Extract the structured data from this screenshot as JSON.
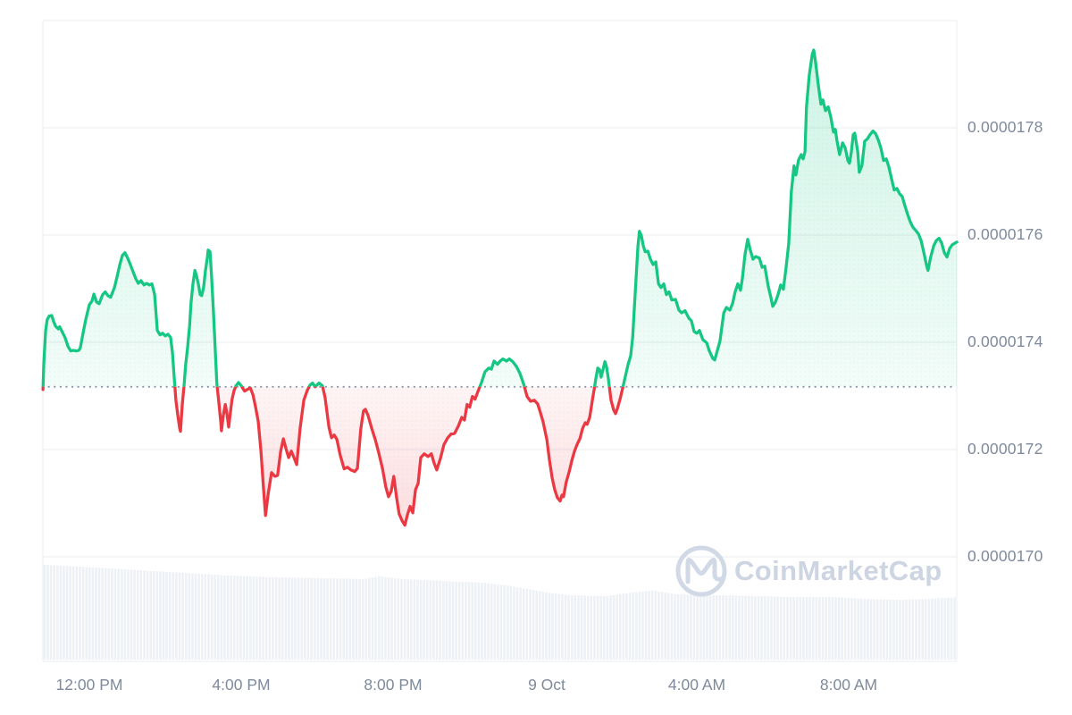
{
  "watermark": {
    "brand": "CoinMarketCap"
  },
  "colors": {
    "up": "#16c784",
    "down": "#ea3943",
    "grid": "#edf0f3",
    "axis_label": "#7e8a9c",
    "baseline_dots": "#8c96a6",
    "volume": "#edf0f5",
    "watermark_text": "#cdd4e2",
    "watermark_ring": "#d2d9e6",
    "background": "#ffffff"
  },
  "chart_data": {
    "type": "area",
    "subtype": "baseline-split-area (green above previous close, red below)",
    "title": "",
    "xlabel": "",
    "ylabel": "",
    "grid": "horizontal-only",
    "legend": "none",
    "price_unit_note": "price values are in millionths USD: 17.317 = 0.000017317",
    "t_unit_note": "t = hours elapsed since 11:00 AM on 8 Oct",
    "xlim": [
      -0.22,
      23.85
    ],
    "ylim": [
      16.81,
      18.0
    ],
    "baseline": {
      "value": 17.317,
      "display": "dotted",
      "meaning": "previous close 0.0000173"
    },
    "y_axis": {
      "side": "right",
      "ticks": [
        {
          "v": 17.8,
          "label": "0.0000178"
        },
        {
          "v": 17.6,
          "label": "0.0000176"
        },
        {
          "v": 17.4,
          "label": "0.0000174"
        },
        {
          "v": 17.2,
          "label": "0.0000172"
        },
        {
          "v": 17.0,
          "label": "0.0000170"
        }
      ]
    },
    "x_axis": {
      "ticks": [
        {
          "t": 1,
          "label": "12:00 PM"
        },
        {
          "t": 5,
          "label": "4:00 PM"
        },
        {
          "t": 9,
          "label": "8:00 PM"
        },
        {
          "t": 13,
          "label": "9 Oct"
        },
        {
          "t": 17,
          "label": "4:00 AM"
        },
        {
          "t": 21,
          "label": "8:00 AM"
        }
      ]
    },
    "series_format": [
      "t_hours",
      "price_millionths_usd"
    ],
    "series": [
      [
        -0.22,
        17.312
      ],
      [
        -0.2,
        17.359
      ],
      [
        -0.15,
        17.422
      ],
      [
        -0.11,
        17.442
      ],
      [
        -0.06,
        17.449
      ],
      [
        0.01,
        17.45
      ],
      [
        0.06,
        17.439
      ],
      [
        0.11,
        17.43
      ],
      [
        0.18,
        17.425
      ],
      [
        0.22,
        17.429
      ],
      [
        0.29,
        17.419
      ],
      [
        0.36,
        17.409
      ],
      [
        0.44,
        17.392
      ],
      [
        0.51,
        17.384
      ],
      [
        0.58,
        17.385
      ],
      [
        0.65,
        17.384
      ],
      [
        0.72,
        17.385
      ],
      [
        0.76,
        17.389
      ],
      [
        0.84,
        17.419
      ],
      [
        0.91,
        17.444
      ],
      [
        1.0,
        17.47
      ],
      [
        1.07,
        17.477
      ],
      [
        1.12,
        17.49
      ],
      [
        1.19,
        17.475
      ],
      [
        1.26,
        17.472
      ],
      [
        1.35,
        17.489
      ],
      [
        1.42,
        17.494
      ],
      [
        1.49,
        17.487
      ],
      [
        1.56,
        17.484
      ],
      [
        1.66,
        17.502
      ],
      [
        1.73,
        17.522
      ],
      [
        1.8,
        17.544
      ],
      [
        1.87,
        17.562
      ],
      [
        1.94,
        17.567
      ],
      [
        2.01,
        17.557
      ],
      [
        2.08,
        17.545
      ],
      [
        2.15,
        17.532
      ],
      [
        2.22,
        17.519
      ],
      [
        2.29,
        17.51
      ],
      [
        2.36,
        17.515
      ],
      [
        2.44,
        17.507
      ],
      [
        2.51,
        17.51
      ],
      [
        2.58,
        17.507
      ],
      [
        2.65,
        17.509
      ],
      [
        2.72,
        17.489
      ],
      [
        2.79,
        17.422
      ],
      [
        2.86,
        17.414
      ],
      [
        2.93,
        17.417
      ],
      [
        3.0,
        17.412
      ],
      [
        3.07,
        17.415
      ],
      [
        3.14,
        17.409
      ],
      [
        3.19,
        17.38
      ],
      [
        3.24,
        17.33
      ],
      [
        3.28,
        17.292
      ],
      [
        3.33,
        17.264
      ],
      [
        3.38,
        17.239
      ],
      [
        3.4,
        17.234
      ],
      [
        3.45,
        17.285
      ],
      [
        3.49,
        17.315
      ],
      [
        3.54,
        17.359
      ],
      [
        3.59,
        17.392
      ],
      [
        3.64,
        17.43
      ],
      [
        3.68,
        17.475
      ],
      [
        3.73,
        17.509
      ],
      [
        3.78,
        17.534
      ],
      [
        3.82,
        17.525
      ],
      [
        3.87,
        17.509
      ],
      [
        3.92,
        17.489
      ],
      [
        3.96,
        17.487
      ],
      [
        4.01,
        17.502
      ],
      [
        4.06,
        17.534
      ],
      [
        4.11,
        17.559
      ],
      [
        4.13,
        17.572
      ],
      [
        4.18,
        17.569
      ],
      [
        4.22,
        17.525
      ],
      [
        4.27,
        17.455
      ],
      [
        4.32,
        17.38
      ],
      [
        4.36,
        17.322
      ],
      [
        4.41,
        17.289
      ],
      [
        4.46,
        17.252
      ],
      [
        4.48,
        17.235
      ],
      [
        4.53,
        17.264
      ],
      [
        4.58,
        17.284
      ],
      [
        4.62,
        17.269
      ],
      [
        4.67,
        17.242
      ],
      [
        4.72,
        17.272
      ],
      [
        4.76,
        17.294
      ],
      [
        4.81,
        17.309
      ],
      [
        4.86,
        17.319
      ],
      [
        4.93,
        17.325
      ],
      [
        5.0,
        17.319
      ],
      [
        5.09,
        17.309
      ],
      [
        5.16,
        17.312
      ],
      [
        5.24,
        17.315
      ],
      [
        5.31,
        17.302
      ],
      [
        5.38,
        17.279
      ],
      [
        5.45,
        17.252
      ],
      [
        5.52,
        17.197
      ],
      [
        5.59,
        17.125
      ],
      [
        5.64,
        17.077
      ],
      [
        5.71,
        17.117
      ],
      [
        5.8,
        17.157
      ],
      [
        5.89,
        17.15
      ],
      [
        5.96,
        17.152
      ],
      [
        6.04,
        17.197
      ],
      [
        6.11,
        17.22
      ],
      [
        6.18,
        17.202
      ],
      [
        6.25,
        17.185
      ],
      [
        6.32,
        17.197
      ],
      [
        6.39,
        17.185
      ],
      [
        6.46,
        17.172
      ],
      [
        6.55,
        17.239
      ],
      [
        6.65,
        17.292
      ],
      [
        6.74,
        17.31
      ],
      [
        6.81,
        17.32
      ],
      [
        6.88,
        17.324
      ],
      [
        6.95,
        17.317
      ],
      [
        7.05,
        17.324
      ],
      [
        7.14,
        17.319
      ],
      [
        7.21,
        17.297
      ],
      [
        7.31,
        17.242
      ],
      [
        7.38,
        17.222
      ],
      [
        7.45,
        17.227
      ],
      [
        7.52,
        17.219
      ],
      [
        7.61,
        17.189
      ],
      [
        7.71,
        17.164
      ],
      [
        7.8,
        17.167
      ],
      [
        7.89,
        17.162
      ],
      [
        7.99,
        17.159
      ],
      [
        8.06,
        17.165
      ],
      [
        8.15,
        17.239
      ],
      [
        8.22,
        17.272
      ],
      [
        8.27,
        17.275
      ],
      [
        8.34,
        17.264
      ],
      [
        8.44,
        17.239
      ],
      [
        8.53,
        17.219
      ],
      [
        8.62,
        17.195
      ],
      [
        8.72,
        17.165
      ],
      [
        8.81,
        17.13
      ],
      [
        8.88,
        17.112
      ],
      [
        8.95,
        17.122
      ],
      [
        9.02,
        17.15
      ],
      [
        9.09,
        17.112
      ],
      [
        9.16,
        17.08
      ],
      [
        9.24,
        17.067
      ],
      [
        9.31,
        17.059
      ],
      [
        9.38,
        17.079
      ],
      [
        9.45,
        17.094
      ],
      [
        9.52,
        17.082
      ],
      [
        9.59,
        17.125
      ],
      [
        9.66,
        17.137
      ],
      [
        9.73,
        17.185
      ],
      [
        9.82,
        17.192
      ],
      [
        9.92,
        17.187
      ],
      [
        10.01,
        17.192
      ],
      [
        10.08,
        17.175
      ],
      [
        10.15,
        17.162
      ],
      [
        10.25,
        17.184
      ],
      [
        10.34,
        17.209
      ],
      [
        10.44,
        17.222
      ],
      [
        10.53,
        17.229
      ],
      [
        10.62,
        17.23
      ],
      [
        10.72,
        17.244
      ],
      [
        10.81,
        17.26
      ],
      [
        10.88,
        17.255
      ],
      [
        10.95,
        17.284
      ],
      [
        11.02,
        17.279
      ],
      [
        11.09,
        17.299
      ],
      [
        11.16,
        17.294
      ],
      [
        11.24,
        17.309
      ],
      [
        11.33,
        17.325
      ],
      [
        11.42,
        17.345
      ],
      [
        11.52,
        17.352
      ],
      [
        11.59,
        17.35
      ],
      [
        11.66,
        17.365
      ],
      [
        11.75,
        17.359
      ],
      [
        11.82,
        17.365
      ],
      [
        11.89,
        17.369
      ],
      [
        11.99,
        17.365
      ],
      [
        12.06,
        17.369
      ],
      [
        12.15,
        17.364
      ],
      [
        12.25,
        17.355
      ],
      [
        12.34,
        17.342
      ],
      [
        12.44,
        17.322
      ],
      [
        12.53,
        17.299
      ],
      [
        12.62,
        17.29
      ],
      [
        12.72,
        17.292
      ],
      [
        12.81,
        17.285
      ],
      [
        12.88,
        17.269
      ],
      [
        12.95,
        17.252
      ],
      [
        13.05,
        17.219
      ],
      [
        13.12,
        17.18
      ],
      [
        13.19,
        17.147
      ],
      [
        13.26,
        17.125
      ],
      [
        13.33,
        17.11
      ],
      [
        13.4,
        17.104
      ],
      [
        13.45,
        17.115
      ],
      [
        13.49,
        17.112
      ],
      [
        13.56,
        17.139
      ],
      [
        13.64,
        17.159
      ],
      [
        13.71,
        17.18
      ],
      [
        13.78,
        17.197
      ],
      [
        13.85,
        17.21
      ],
      [
        13.92,
        17.22
      ],
      [
        13.99,
        17.239
      ],
      [
        14.06,
        17.25
      ],
      [
        14.11,
        17.247
      ],
      [
        14.18,
        17.26
      ],
      [
        14.25,
        17.292
      ],
      [
        14.29,
        17.309
      ],
      [
        14.34,
        17.332
      ],
      [
        14.39,
        17.352
      ],
      [
        14.44,
        17.349
      ],
      [
        14.48,
        17.335
      ],
      [
        14.53,
        17.349
      ],
      [
        14.58,
        17.364
      ],
      [
        14.62,
        17.355
      ],
      [
        14.67,
        17.332
      ],
      [
        14.74,
        17.292
      ],
      [
        14.81,
        17.274
      ],
      [
        14.86,
        17.267
      ],
      [
        14.91,
        17.277
      ],
      [
        14.98,
        17.294
      ],
      [
        15.05,
        17.315
      ],
      [
        15.12,
        17.337
      ],
      [
        15.19,
        17.359
      ],
      [
        15.26,
        17.375
      ],
      [
        15.31,
        17.409
      ],
      [
        15.35,
        17.459
      ],
      [
        15.4,
        17.519
      ],
      [
        15.45,
        17.579
      ],
      [
        15.49,
        17.607
      ],
      [
        15.54,
        17.599
      ],
      [
        15.59,
        17.58
      ],
      [
        15.64,
        17.569
      ],
      [
        15.71,
        17.57
      ],
      [
        15.78,
        17.555
      ],
      [
        15.85,
        17.545
      ],
      [
        15.92,
        17.55
      ],
      [
        15.99,
        17.509
      ],
      [
        16.06,
        17.502
      ],
      [
        16.13,
        17.509
      ],
      [
        16.2,
        17.489
      ],
      [
        16.27,
        17.494
      ],
      [
        16.34,
        17.479
      ],
      [
        16.44,
        17.48
      ],
      [
        16.53,
        17.46
      ],
      [
        16.6,
        17.455
      ],
      [
        16.69,
        17.459
      ],
      [
        16.79,
        17.445
      ],
      [
        16.86,
        17.44
      ],
      [
        16.93,
        17.42
      ],
      [
        17.0,
        17.417
      ],
      [
        17.07,
        17.422
      ],
      [
        17.16,
        17.405
      ],
      [
        17.26,
        17.399
      ],
      [
        17.33,
        17.384
      ],
      [
        17.42,
        17.37
      ],
      [
        17.47,
        17.367
      ],
      [
        17.54,
        17.384
      ],
      [
        17.61,
        17.402
      ],
      [
        17.71,
        17.455
      ],
      [
        17.78,
        17.465
      ],
      [
        17.87,
        17.46
      ],
      [
        17.94,
        17.472
      ],
      [
        18.01,
        17.494
      ],
      [
        18.08,
        17.509
      ],
      [
        18.15,
        17.497
      ],
      [
        18.2,
        17.519
      ],
      [
        18.27,
        17.564
      ],
      [
        18.34,
        17.592
      ],
      [
        18.41,
        17.572
      ],
      [
        18.48,
        17.555
      ],
      [
        18.55,
        17.56
      ],
      [
        18.65,
        17.557
      ],
      [
        18.72,
        17.54
      ],
      [
        18.79,
        17.542
      ],
      [
        18.88,
        17.505
      ],
      [
        18.95,
        17.484
      ],
      [
        19.0,
        17.467
      ],
      [
        19.07,
        17.475
      ],
      [
        19.14,
        17.489
      ],
      [
        19.21,
        17.507
      ],
      [
        19.28,
        17.499
      ],
      [
        19.35,
        17.539
      ],
      [
        19.42,
        17.584
      ],
      [
        19.49,
        17.68
      ],
      [
        19.56,
        17.729
      ],
      [
        19.61,
        17.712
      ],
      [
        19.68,
        17.74
      ],
      [
        19.75,
        17.75
      ],
      [
        19.8,
        17.742
      ],
      [
        19.85,
        17.755
      ],
      [
        19.89,
        17.839
      ],
      [
        19.96,
        17.897
      ],
      [
        20.04,
        17.937
      ],
      [
        20.08,
        17.945
      ],
      [
        20.13,
        17.922
      ],
      [
        20.2,
        17.88
      ],
      [
        20.27,
        17.844
      ],
      [
        20.32,
        17.852
      ],
      [
        20.39,
        17.832
      ],
      [
        20.46,
        17.839
      ],
      [
        20.53,
        17.82
      ],
      [
        20.6,
        17.792
      ],
      [
        20.65,
        17.797
      ],
      [
        20.69,
        17.777
      ],
      [
        20.76,
        17.75
      ],
      [
        20.84,
        17.772
      ],
      [
        20.91,
        17.762
      ],
      [
        20.98,
        17.739
      ],
      [
        21.02,
        17.734
      ],
      [
        21.07,
        17.755
      ],
      [
        21.12,
        17.787
      ],
      [
        21.16,
        17.79
      ],
      [
        21.24,
        17.755
      ],
      [
        21.28,
        17.717
      ],
      [
        21.35,
        17.73
      ],
      [
        21.42,
        17.775
      ],
      [
        21.49,
        17.779
      ],
      [
        21.56,
        17.787
      ],
      [
        21.64,
        17.794
      ],
      [
        21.71,
        17.789
      ],
      [
        21.78,
        17.777
      ],
      [
        21.85,
        17.762
      ],
      [
        21.92,
        17.739
      ],
      [
        21.99,
        17.742
      ],
      [
        22.06,
        17.727
      ],
      [
        22.13,
        17.705
      ],
      [
        22.2,
        17.684
      ],
      [
        22.27,
        17.687
      ],
      [
        22.34,
        17.677
      ],
      [
        22.41,
        17.672
      ],
      [
        22.48,
        17.655
      ],
      [
        22.55,
        17.639
      ],
      [
        22.62,
        17.625
      ],
      [
        22.69,
        17.615
      ],
      [
        22.76,
        17.609
      ],
      [
        22.84,
        17.602
      ],
      [
        22.91,
        17.589
      ],
      [
        22.98,
        17.567
      ],
      [
        23.05,
        17.544
      ],
      [
        23.09,
        17.534
      ],
      [
        23.16,
        17.559
      ],
      [
        23.24,
        17.58
      ],
      [
        23.31,
        17.59
      ],
      [
        23.38,
        17.594
      ],
      [
        23.45,
        17.585
      ],
      [
        23.52,
        17.567
      ],
      [
        23.59,
        17.559
      ],
      [
        23.66,
        17.575
      ],
      [
        23.73,
        17.582
      ],
      [
        23.8,
        17.585
      ],
      [
        23.85,
        17.587
      ]
    ],
    "volume_profile_format": [
      "t_hours",
      "relative_height_0_to_1"
    ],
    "volume_profile": [
      [
        -0.22,
        1.0
      ],
      [
        0.8,
        0.98
      ],
      [
        2,
        0.95
      ],
      [
        3.3,
        0.92
      ],
      [
        4.5,
        0.89
      ],
      [
        5.7,
        0.87
      ],
      [
        7,
        0.86
      ],
      [
        8.2,
        0.85
      ],
      [
        8.6,
        0.88
      ],
      [
        9.2,
        0.85
      ],
      [
        10.3,
        0.83
      ],
      [
        11.4,
        0.81
      ],
      [
        12,
        0.78
      ],
      [
        12.6,
        0.74
      ],
      [
        13,
        0.71
      ],
      [
        13.6,
        0.68
      ],
      [
        14.6,
        0.67
      ],
      [
        15.3,
        0.71
      ],
      [
        15.8,
        0.73
      ],
      [
        16.4,
        0.69
      ],
      [
        17.5,
        0.68
      ],
      [
        18.6,
        0.67
      ],
      [
        19.5,
        0.66
      ],
      [
        20.6,
        0.66
      ],
      [
        21.5,
        0.64
      ],
      [
        22.3,
        0.63
      ],
      [
        23,
        0.64
      ],
      [
        23.85,
        0.66
      ]
    ]
  }
}
